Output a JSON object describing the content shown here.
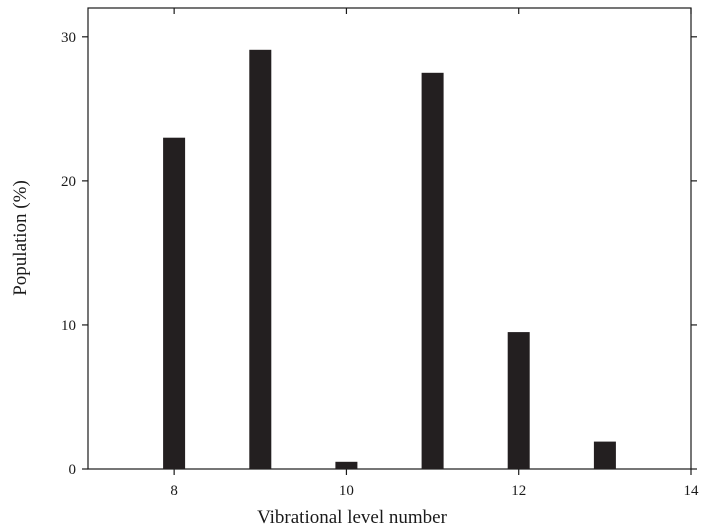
{
  "chart_data": {
    "type": "bar",
    "title": "",
    "xlabel": "Vibrational level number",
    "ylabel": "Population (%)",
    "x": [
      8,
      9,
      10,
      11,
      12,
      13
    ],
    "values": [
      23.0,
      29.1,
      0.5,
      27.5,
      9.5,
      1.9
    ],
    "xlim": [
      7,
      14
    ],
    "ylim": [
      0,
      32
    ],
    "xticks": [
      8,
      10,
      12,
      14
    ],
    "yticks": [
      0,
      10,
      20,
      30
    ],
    "xtick_labels": [
      "8",
      "10",
      "12",
      "14"
    ],
    "ytick_labels": [
      "0",
      "10",
      "20",
      "30"
    ],
    "bar_color": "#231f20",
    "grid": false,
    "legend": "none"
  }
}
